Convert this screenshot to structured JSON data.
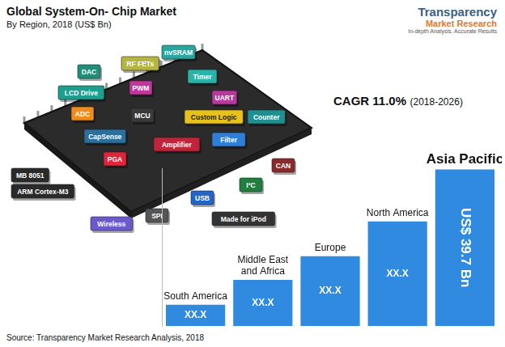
{
  "header": {
    "title": "Global System-On- Chip Market",
    "subtitle": "By Region, 2018 (US$ Bn)",
    "logo": "Transparency",
    "logo_sub": "Market Research",
    "logo_tagline": "In-depth Analysis. Accurate Results"
  },
  "annotations": {
    "cagr": "CAGR 11.0%",
    "cagr_period": "(2018-2026)"
  },
  "chip_labels": [
    "DAC",
    "RF FETs",
    "nvSRAM",
    "LCD Drive",
    "PWM",
    "Timer",
    "UART",
    "ADC",
    "MCU",
    "Custom Logic",
    "Counter",
    "CapSense",
    "Filter",
    "PGA",
    "Amplifier",
    "MB 8051",
    "ARM Cortex-M3",
    "Wireless",
    "SPI",
    "USB",
    "I²C",
    "CAN",
    "Made for iPod"
  ],
  "source": "Source: Transparency Market Research Analysis, 2018",
  "chart_data": {
    "type": "bar",
    "categories": [
      "South America",
      "Middle East and Africa",
      "Europe",
      "North America",
      "Asia Pacific"
    ],
    "values": [
      5.4,
      11.7,
      17.7,
      26.5,
      39.7
    ],
    "value_labels": [
      "XX.X",
      "XX.X",
      "XX.X",
      "XX.X",
      "US$ 39.7 Bn"
    ],
    "color": "#2f8ae0",
    "ylim": [
      0,
      40
    ],
    "tick_labels": false,
    "grid": false,
    "data_labels": true
  }
}
